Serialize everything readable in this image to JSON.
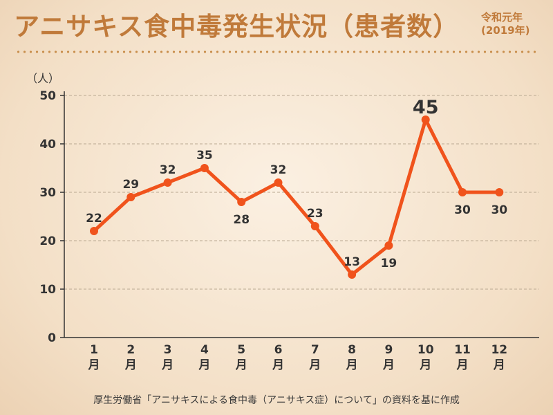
{
  "header": {
    "title": "アニサキス食中毒発生状況（患者数）",
    "subtitle_line1": "令和元年",
    "subtitle_line2": "(2019年)"
  },
  "footer": {
    "source": "厚生労働省「アニサキスによる食中毒（アニサキス症）について」の資料を基に作成"
  },
  "colors": {
    "title": "#c07a3a",
    "line": "#f0531c",
    "axis": "#333333",
    "grid": "#b9a891"
  },
  "chart_data": {
    "type": "line",
    "title": "アニサキス食中毒発生状況（患者数）",
    "subtitle": "令和元年(2019年)",
    "ylabel": "（人）",
    "xlabel": "",
    "categories": [
      "1月",
      "2月",
      "3月",
      "4月",
      "5月",
      "6月",
      "7月",
      "8月",
      "9月",
      "10月",
      "11月",
      "12月"
    ],
    "x_ticks": [
      {
        "num": "1",
        "unit": "月"
      },
      {
        "num": "2",
        "unit": "月"
      },
      {
        "num": "3",
        "unit": "月"
      },
      {
        "num": "4",
        "unit": "月"
      },
      {
        "num": "5",
        "unit": "月"
      },
      {
        "num": "6",
        "unit": "月"
      },
      {
        "num": "7",
        "unit": "月"
      },
      {
        "num": "8",
        "unit": "月"
      },
      {
        "num": "9",
        "unit": "月"
      },
      {
        "num": "10",
        "unit": "月"
      },
      {
        "num": "11",
        "unit": "月"
      },
      {
        "num": "12",
        "unit": "月"
      }
    ],
    "values": [
      22,
      29,
      32,
      35,
      28,
      32,
      23,
      13,
      19,
      45,
      30,
      30
    ],
    "data_labels": [
      "22",
      "29",
      "32",
      "35",
      "28",
      "32",
      "23",
      "13",
      "19",
      "45",
      "30",
      "30"
    ],
    "label_positions": [
      "above",
      "above",
      "above",
      "above",
      "below",
      "above",
      "above",
      "above",
      "below",
      "above",
      "below",
      "below"
    ],
    "highlight_index": 9,
    "ylim": [
      0,
      50
    ],
    "y_ticks": [
      "0",
      "10",
      "20",
      "30",
      "40",
      "50"
    ],
    "grid": true,
    "legend": "none"
  }
}
